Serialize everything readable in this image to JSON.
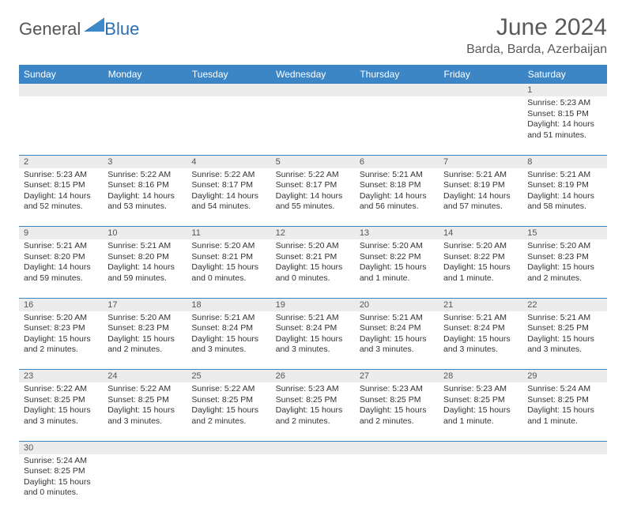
{
  "brand": {
    "part1": "General",
    "part2": "Blue"
  },
  "title": "June 2024",
  "location": "Barda, Barda, Azerbaijan",
  "colors": {
    "header_bg": "#3d86c6",
    "header_text": "#ffffff",
    "daynum_bg": "#ececec",
    "grid_line": "#3d86c6",
    "title_color": "#595959"
  },
  "weekdays": [
    "Sunday",
    "Monday",
    "Tuesday",
    "Wednesday",
    "Thursday",
    "Friday",
    "Saturday"
  ],
  "weeks": [
    [
      null,
      null,
      null,
      null,
      null,
      null,
      {
        "n": "1",
        "sunrise": "Sunrise: 5:23 AM",
        "sunset": "Sunset: 8:15 PM",
        "daylight": "Daylight: 14 hours and 51 minutes."
      }
    ],
    [
      {
        "n": "2",
        "sunrise": "Sunrise: 5:23 AM",
        "sunset": "Sunset: 8:15 PM",
        "daylight": "Daylight: 14 hours and 52 minutes."
      },
      {
        "n": "3",
        "sunrise": "Sunrise: 5:22 AM",
        "sunset": "Sunset: 8:16 PM",
        "daylight": "Daylight: 14 hours and 53 minutes."
      },
      {
        "n": "4",
        "sunrise": "Sunrise: 5:22 AM",
        "sunset": "Sunset: 8:17 PM",
        "daylight": "Daylight: 14 hours and 54 minutes."
      },
      {
        "n": "5",
        "sunrise": "Sunrise: 5:22 AM",
        "sunset": "Sunset: 8:17 PM",
        "daylight": "Daylight: 14 hours and 55 minutes."
      },
      {
        "n": "6",
        "sunrise": "Sunrise: 5:21 AM",
        "sunset": "Sunset: 8:18 PM",
        "daylight": "Daylight: 14 hours and 56 minutes."
      },
      {
        "n": "7",
        "sunrise": "Sunrise: 5:21 AM",
        "sunset": "Sunset: 8:19 PM",
        "daylight": "Daylight: 14 hours and 57 minutes."
      },
      {
        "n": "8",
        "sunrise": "Sunrise: 5:21 AM",
        "sunset": "Sunset: 8:19 PM",
        "daylight": "Daylight: 14 hours and 58 minutes."
      }
    ],
    [
      {
        "n": "9",
        "sunrise": "Sunrise: 5:21 AM",
        "sunset": "Sunset: 8:20 PM",
        "daylight": "Daylight: 14 hours and 59 minutes."
      },
      {
        "n": "10",
        "sunrise": "Sunrise: 5:21 AM",
        "sunset": "Sunset: 8:20 PM",
        "daylight": "Daylight: 14 hours and 59 minutes."
      },
      {
        "n": "11",
        "sunrise": "Sunrise: 5:20 AM",
        "sunset": "Sunset: 8:21 PM",
        "daylight": "Daylight: 15 hours and 0 minutes."
      },
      {
        "n": "12",
        "sunrise": "Sunrise: 5:20 AM",
        "sunset": "Sunset: 8:21 PM",
        "daylight": "Daylight: 15 hours and 0 minutes."
      },
      {
        "n": "13",
        "sunrise": "Sunrise: 5:20 AM",
        "sunset": "Sunset: 8:22 PM",
        "daylight": "Daylight: 15 hours and 1 minute."
      },
      {
        "n": "14",
        "sunrise": "Sunrise: 5:20 AM",
        "sunset": "Sunset: 8:22 PM",
        "daylight": "Daylight: 15 hours and 1 minute."
      },
      {
        "n": "15",
        "sunrise": "Sunrise: 5:20 AM",
        "sunset": "Sunset: 8:23 PM",
        "daylight": "Daylight: 15 hours and 2 minutes."
      }
    ],
    [
      {
        "n": "16",
        "sunrise": "Sunrise: 5:20 AM",
        "sunset": "Sunset: 8:23 PM",
        "daylight": "Daylight: 15 hours and 2 minutes."
      },
      {
        "n": "17",
        "sunrise": "Sunrise: 5:20 AM",
        "sunset": "Sunset: 8:23 PM",
        "daylight": "Daylight: 15 hours and 2 minutes."
      },
      {
        "n": "18",
        "sunrise": "Sunrise: 5:21 AM",
        "sunset": "Sunset: 8:24 PM",
        "daylight": "Daylight: 15 hours and 3 minutes."
      },
      {
        "n": "19",
        "sunrise": "Sunrise: 5:21 AM",
        "sunset": "Sunset: 8:24 PM",
        "daylight": "Daylight: 15 hours and 3 minutes."
      },
      {
        "n": "20",
        "sunrise": "Sunrise: 5:21 AM",
        "sunset": "Sunset: 8:24 PM",
        "daylight": "Daylight: 15 hours and 3 minutes."
      },
      {
        "n": "21",
        "sunrise": "Sunrise: 5:21 AM",
        "sunset": "Sunset: 8:24 PM",
        "daylight": "Daylight: 15 hours and 3 minutes."
      },
      {
        "n": "22",
        "sunrise": "Sunrise: 5:21 AM",
        "sunset": "Sunset: 8:25 PM",
        "daylight": "Daylight: 15 hours and 3 minutes."
      }
    ],
    [
      {
        "n": "23",
        "sunrise": "Sunrise: 5:22 AM",
        "sunset": "Sunset: 8:25 PM",
        "daylight": "Daylight: 15 hours and 3 minutes."
      },
      {
        "n": "24",
        "sunrise": "Sunrise: 5:22 AM",
        "sunset": "Sunset: 8:25 PM",
        "daylight": "Daylight: 15 hours and 3 minutes."
      },
      {
        "n": "25",
        "sunrise": "Sunrise: 5:22 AM",
        "sunset": "Sunset: 8:25 PM",
        "daylight": "Daylight: 15 hours and 2 minutes."
      },
      {
        "n": "26",
        "sunrise": "Sunrise: 5:23 AM",
        "sunset": "Sunset: 8:25 PM",
        "daylight": "Daylight: 15 hours and 2 minutes."
      },
      {
        "n": "27",
        "sunrise": "Sunrise: 5:23 AM",
        "sunset": "Sunset: 8:25 PM",
        "daylight": "Daylight: 15 hours and 2 minutes."
      },
      {
        "n": "28",
        "sunrise": "Sunrise: 5:23 AM",
        "sunset": "Sunset: 8:25 PM",
        "daylight": "Daylight: 15 hours and 1 minute."
      },
      {
        "n": "29",
        "sunrise": "Sunrise: 5:24 AM",
        "sunset": "Sunset: 8:25 PM",
        "daylight": "Daylight: 15 hours and 1 minute."
      }
    ],
    [
      {
        "n": "30",
        "sunrise": "Sunrise: 5:24 AM",
        "sunset": "Sunset: 8:25 PM",
        "daylight": "Daylight: 15 hours and 0 minutes."
      },
      null,
      null,
      null,
      null,
      null,
      null
    ]
  ]
}
